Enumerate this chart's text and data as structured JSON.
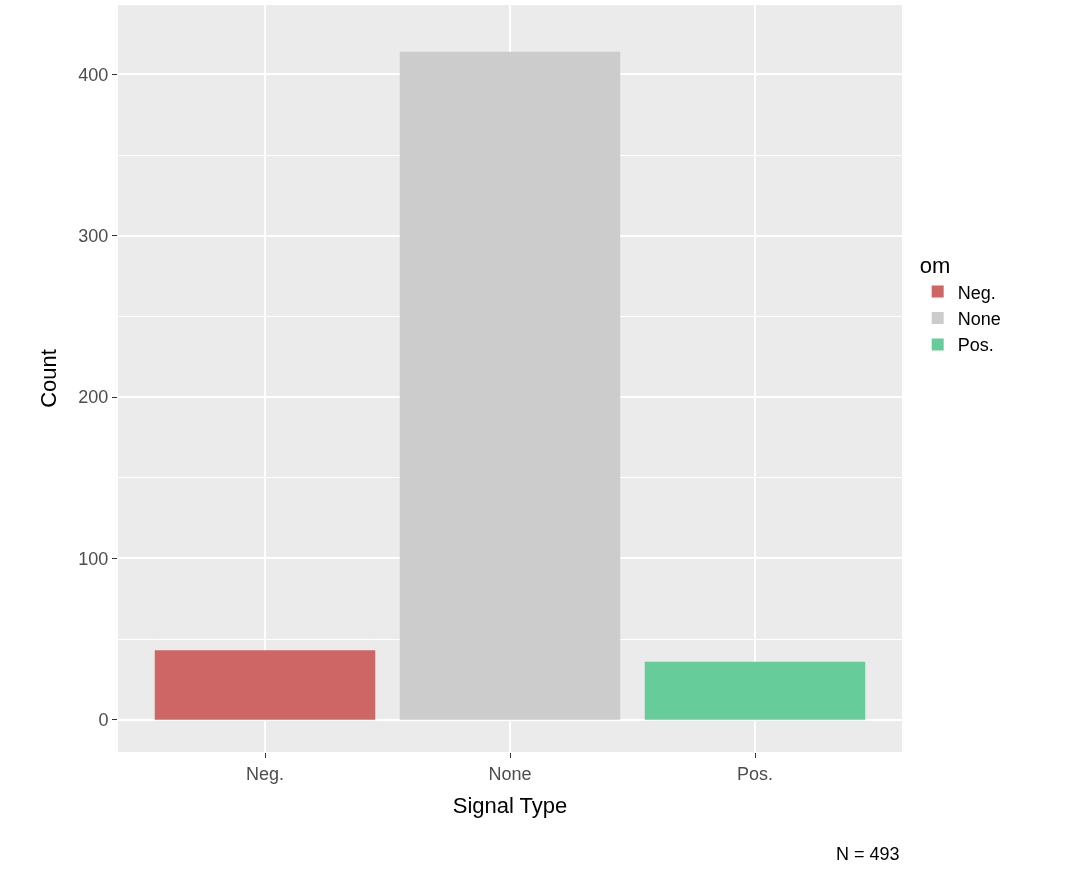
{
  "chart_data": {
    "type": "bar",
    "xlabel": "Signal Type",
    "ylabel": "Count",
    "legend_title": "om",
    "categories": [
      "Neg.",
      "None",
      "Pos."
    ],
    "series": [
      {
        "name": "Neg.",
        "color": "#cd6664",
        "values": [
          43,
          null,
          null
        ]
      },
      {
        "name": "None",
        "color": "#cccccc",
        "values": [
          null,
          414,
          null
        ]
      },
      {
        "name": "Pos.",
        "color": "#66cc99",
        "values": [
          null,
          null,
          36
        ]
      }
    ],
    "ylim": [
      -20,
      443
    ],
    "yticks": [
      0,
      100,
      200,
      300,
      400
    ],
    "grid": true,
    "legend": "right",
    "annotations": [
      "N = 493"
    ]
  }
}
